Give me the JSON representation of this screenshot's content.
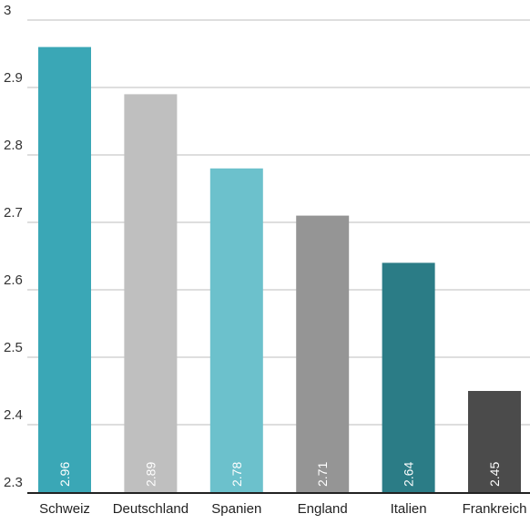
{
  "chart_data": {
    "type": "bar",
    "categories": [
      "Schweiz",
      "Deutschland",
      "Spanien",
      "England",
      "Italien",
      "Frankreich"
    ],
    "values": [
      2.96,
      2.89,
      2.78,
      2.71,
      2.64,
      2.45
    ],
    "value_labels": [
      "2.96",
      "2.89",
      "2.78",
      "2.71",
      "2.64",
      "2.45"
    ],
    "bar_colors": [
      "#3aa7b6",
      "#bfbfbf",
      "#6cc1cc",
      "#959595",
      "#2b7c86",
      "#4b4b4b"
    ],
    "ylim": [
      2.3,
      3.0
    ],
    "yticks": [
      2.3,
      2.4,
      2.5,
      2.6,
      2.7,
      2.8,
      2.9,
      3.0
    ],
    "ytick_labels": [
      "2.3",
      "2.4",
      "2.5",
      "2.6",
      "2.7",
      "2.8",
      "2.9",
      "3"
    ],
    "grid": true,
    "title": "",
    "xlabel": "",
    "ylabel": ""
  }
}
